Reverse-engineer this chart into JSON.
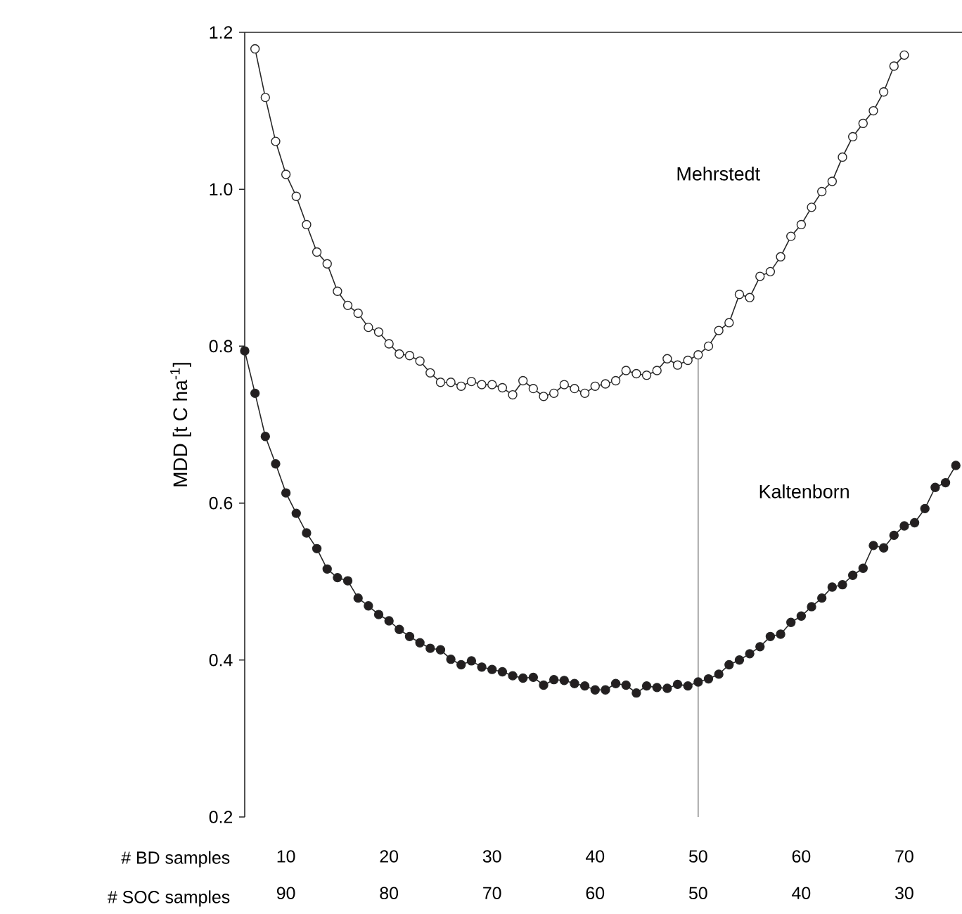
{
  "chart_data": {
    "type": "line",
    "xlabel": "# BD samples",
    "x2label": "# SOC samples",
    "ylabel": "MDD [t C ha$^{-1}$]",
    "xlim": [
      6,
      75.6
    ],
    "xticks": [
      10,
      20,
      30,
      40,
      50,
      60,
      70
    ],
    "x2lim": [
      94,
      24.4
    ],
    "x2ticks": [
      90,
      80,
      70,
      60,
      50,
      40,
      30
    ],
    "ylim": [
      0.2,
      1.2
    ],
    "yticks": [
      {
        "value": 0.2,
        "label": "0.2"
      },
      {
        "value": 0.4,
        "label": "0.4"
      },
      {
        "value": 0.6,
        "label": "0.6"
      },
      {
        "value": 0.8,
        "label": "0.8"
      },
      {
        "value": 1.0,
        "label": "1.0"
      },
      {
        "value": 1.2,
        "label": "1.2"
      }
    ],
    "marker": "circle",
    "grid": false,
    "legend": false,
    "ref_lines": [
      {
        "axis": "x",
        "value": 50,
        "color": "#808080"
      }
    ],
    "series": [
      {
        "name": "Mehrstedt",
        "color": "#ffffff",
        "x": [
          7,
          8,
          9,
          10,
          11,
          12,
          13,
          14,
          15,
          16,
          17,
          18,
          19,
          20,
          21,
          22,
          23,
          24,
          25,
          26,
          27,
          28,
          29,
          30,
          31,
          32,
          33,
          34,
          35,
          36,
          37,
          38,
          39,
          40,
          41,
          42,
          43,
          44,
          45,
          46,
          47,
          48,
          49,
          50,
          51,
          52,
          53,
          54,
          55,
          56,
          57,
          58,
          59,
          60,
          61,
          62,
          63,
          64,
          65,
          66,
          67,
          68,
          69,
          70
        ],
        "values": [
          1.179,
          1.117,
          1.061,
          1.019,
          0.991,
          0.955,
          0.92,
          0.905,
          0.87,
          0.852,
          0.842,
          0.824,
          0.818,
          0.803,
          0.79,
          0.788,
          0.781,
          0.766,
          0.754,
          0.754,
          0.749,
          0.755,
          0.751,
          0.751,
          0.747,
          0.738,
          0.756,
          0.746,
          0.736,
          0.74,
          0.751,
          0.746,
          0.74,
          0.749,
          0.752,
          0.756,
          0.769,
          0.765,
          0.763,
          0.769,
          0.784,
          0.776,
          0.782,
          0.789,
          0.8,
          0.82,
          0.83,
          0.866,
          0.862,
          0.889,
          0.895,
          0.914,
          0.94,
          0.955,
          0.977,
          0.997,
          1.01,
          1.041,
          1.067,
          1.084,
          1.1,
          1.124,
          1.157,
          1.171
        ]
      },
      {
        "name": "Kaltenborn",
        "color": "#231f20",
        "x": [
          6,
          7,
          8,
          9,
          10,
          11,
          12,
          13,
          14,
          15,
          16,
          17,
          18,
          19,
          20,
          21,
          22,
          23,
          24,
          25,
          26,
          27,
          28,
          29,
          30,
          31,
          32,
          33,
          34,
          35,
          36,
          37,
          38,
          39,
          40,
          41,
          42,
          43,
          44,
          45,
          46,
          47,
          48,
          49,
          50,
          51,
          52,
          53,
          54,
          55,
          56,
          57,
          58,
          59,
          60,
          61,
          62,
          63,
          64,
          65,
          66,
          67,
          68,
          69,
          70,
          71,
          72,
          73,
          74,
          75
        ],
        "values": [
          0.794,
          0.74,
          0.685,
          0.65,
          0.613,
          0.587,
          0.562,
          0.542,
          0.516,
          0.505,
          0.501,
          0.479,
          0.469,
          0.458,
          0.45,
          0.439,
          0.43,
          0.422,
          0.415,
          0.413,
          0.401,
          0.394,
          0.399,
          0.391,
          0.388,
          0.385,
          0.38,
          0.377,
          0.378,
          0.368,
          0.375,
          0.374,
          0.37,
          0.367,
          0.362,
          0.362,
          0.37,
          0.368,
          0.358,
          0.367,
          0.365,
          0.364,
          0.369,
          0.367,
          0.372,
          0.376,
          0.382,
          0.394,
          0.4,
          0.408,
          0.417,
          0.43,
          0.433,
          0.448,
          0.456,
          0.468,
          0.479,
          0.493,
          0.496,
          0.508,
          0.517,
          0.546,
          0.543,
          0.559,
          0.571,
          0.575,
          0.593,
          0.62,
          0.626,
          0.648
        ]
      }
    ]
  }
}
